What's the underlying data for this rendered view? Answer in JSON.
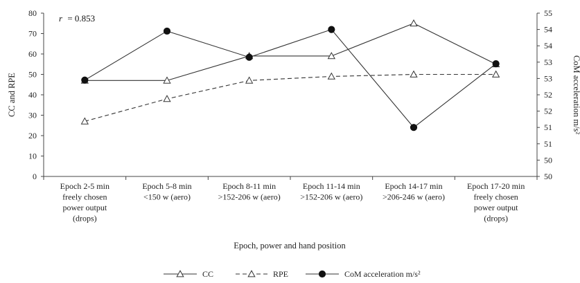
{
  "chart_data": {
    "type": "line",
    "categories": [
      [
        "Epoch 2-5 min",
        "freely chosen",
        "power output",
        "(drops)"
      ],
      [
        "Epoch 5-8 min",
        "<150 w (aero)"
      ],
      [
        "Epoch 8-11 min",
        ">152-206 w (aero)"
      ],
      [
        "Epoch 11-14 min",
        ">152-206 w (aero)"
      ],
      [
        "Epoch 14-17 min",
        ">206-246 w (aero)"
      ],
      [
        "Epoch 17-20 min",
        "freely chosen",
        "power output",
        "(drops)"
      ]
    ],
    "xlabel": "Epoch, power and hand position",
    "ylabel": "CC and RPE",
    "y2label": "CoM acceleration m/s²",
    "ylim": [
      0,
      80
    ],
    "yticks": [
      "0",
      "10",
      "20",
      "30",
      "40",
      "50",
      "60",
      "70",
      "80"
    ],
    "y2lim": [
      50,
      55
    ],
    "y2ticks": [
      "50",
      "50",
      "51",
      "51",
      "52",
      "52",
      "53",
      "53",
      "54",
      "54",
      "55"
    ],
    "annotation": {
      "r_label": "r",
      "r_value": "= 0.853"
    },
    "grid": false,
    "legend_position": "bottom",
    "series": [
      {
        "name": "CC",
        "axis": "left",
        "marker": "triangle",
        "dash": "solid",
        "values": [
          47,
          47,
          59,
          59,
          75,
          55
        ]
      },
      {
        "name": "RPE",
        "axis": "left",
        "marker": "triangle-open",
        "dash": "dashed",
        "values": [
          27,
          38,
          47,
          49,
          50,
          50
        ]
      },
      {
        "name": "CoM acceleration m/s²",
        "axis": "right",
        "marker": "circle",
        "dash": "solid",
        "values": [
          52.95,
          54.45,
          53.65,
          54.5,
          51.5,
          53.45
        ]
      }
    ]
  },
  "colors": {
    "line": "#333333",
    "marker_fill": "#111111",
    "axis": "#444444"
  }
}
